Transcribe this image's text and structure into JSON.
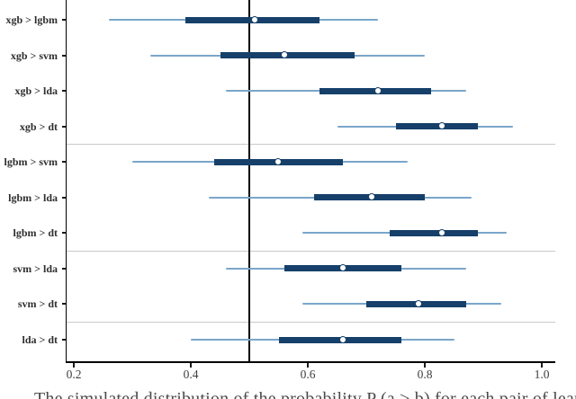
{
  "figure": {
    "caption": "The simulated distribution of the probability P (a > b) for each pair of learners.",
    "caption_truncated_at_bottom": true
  },
  "chart_data": {
    "type": "scatter",
    "subtype": "forest-interval-plot",
    "orientation": "horizontal",
    "title": "",
    "xlabel": "",
    "ylabel": "",
    "x_axis": {
      "ticks": [
        0.2,
        0.4,
        0.6,
        0.8,
        1.0
      ],
      "tick_labels": [
        "0.2",
        "0.4",
        "0.6",
        "0.8",
        "1.0"
      ],
      "range": [
        0.188,
        1.023
      ]
    },
    "reference_line_x": 0.5,
    "grid": "off",
    "legend": "none",
    "rows": [
      {
        "label": "xgb > lgbm",
        "outer": [
          0.26,
          0.72
        ],
        "inner": [
          0.39,
          0.62
        ],
        "median": 0.51
      },
      {
        "label": "xgb > svm",
        "outer": [
          0.33,
          0.8
        ],
        "inner": [
          0.45,
          0.68
        ],
        "median": 0.56
      },
      {
        "label": "xgb > lda",
        "outer": [
          0.46,
          0.87
        ],
        "inner": [
          0.62,
          0.81
        ],
        "median": 0.72
      },
      {
        "label": "xgb > dt",
        "outer": [
          0.65,
          0.95
        ],
        "inner": [
          0.75,
          0.89
        ],
        "median": 0.83
      },
      {
        "label": "lgbm > svm",
        "outer": [
          0.3,
          0.77
        ],
        "inner": [
          0.44,
          0.66
        ],
        "median": 0.55
      },
      {
        "label": "lgbm > lda",
        "outer": [
          0.43,
          0.88
        ],
        "inner": [
          0.61,
          0.8
        ],
        "median": 0.71
      },
      {
        "label": "lgbm > dt",
        "outer": [
          0.59,
          0.94
        ],
        "inner": [
          0.74,
          0.89
        ],
        "median": 0.83
      },
      {
        "label": "svm > lda",
        "outer": [
          0.46,
          0.87
        ],
        "inner": [
          0.56,
          0.76
        ],
        "median": 0.66
      },
      {
        "label": "svm > dt",
        "outer": [
          0.59,
          0.93
        ],
        "inner": [
          0.7,
          0.87
        ],
        "median": 0.79
      },
      {
        "label": "lda > dt",
        "outer": [
          0.4,
          0.85
        ],
        "inner": [
          0.55,
          0.76
        ],
        "median": 0.66
      }
    ],
    "group_separators_after_row_index": [
      3,
      6,
      8
    ],
    "colors": {
      "inner_bar": "#16406a",
      "outer_line": "#7aa6ca",
      "median_dot_fill": "#ffffff",
      "median_dot_border": "#16406a",
      "reference_line": "#000000",
      "axis": "#000000",
      "separator": "#c9c9c9"
    }
  }
}
